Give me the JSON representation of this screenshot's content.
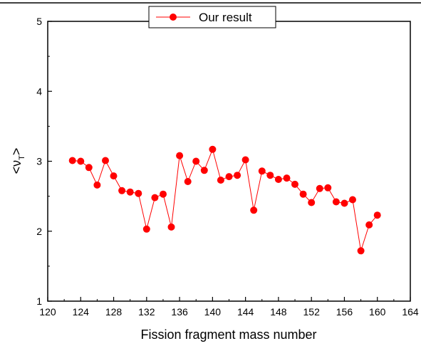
{
  "chart_data": {
    "type": "line",
    "xlabel": "Fission fragment mass number",
    "ylabel_main": "<ν",
    "ylabel_sub": "T",
    "ylabel_end": ">",
    "xlim": [
      120,
      164
    ],
    "ylim": [
      1,
      5
    ],
    "x_ticks": [
      120,
      124,
      128,
      132,
      136,
      140,
      144,
      148,
      152,
      156,
      160,
      164
    ],
    "y_ticks": [
      1,
      2,
      3,
      4,
      5
    ],
    "grid": false,
    "legend_position": "top-center",
    "series": [
      {
        "name": "Our result",
        "color": "#ff0000",
        "marker": "circle",
        "x": [
          123,
          124,
          125,
          126,
          127,
          128,
          129,
          130,
          131,
          132,
          133,
          134,
          135,
          136,
          137,
          138,
          139,
          140,
          141,
          142,
          143,
          144,
          145,
          146,
          147,
          148,
          149,
          150,
          151,
          152,
          153,
          154,
          155,
          156,
          157,
          158,
          159,
          160
        ],
        "y": [
          3.01,
          3.0,
          2.91,
          2.66,
          3.01,
          2.79,
          2.58,
          2.56,
          2.54,
          2.03,
          2.48,
          2.53,
          2.06,
          3.08,
          2.71,
          3.0,
          2.87,
          3.17,
          2.73,
          2.78,
          2.8,
          3.02,
          2.3,
          2.86,
          2.8,
          2.74,
          2.76,
          2.67,
          2.53,
          2.41,
          2.61,
          2.62,
          2.42,
          2.4,
          2.45,
          1.72,
          2.09,
          2.23
        ]
      }
    ]
  }
}
